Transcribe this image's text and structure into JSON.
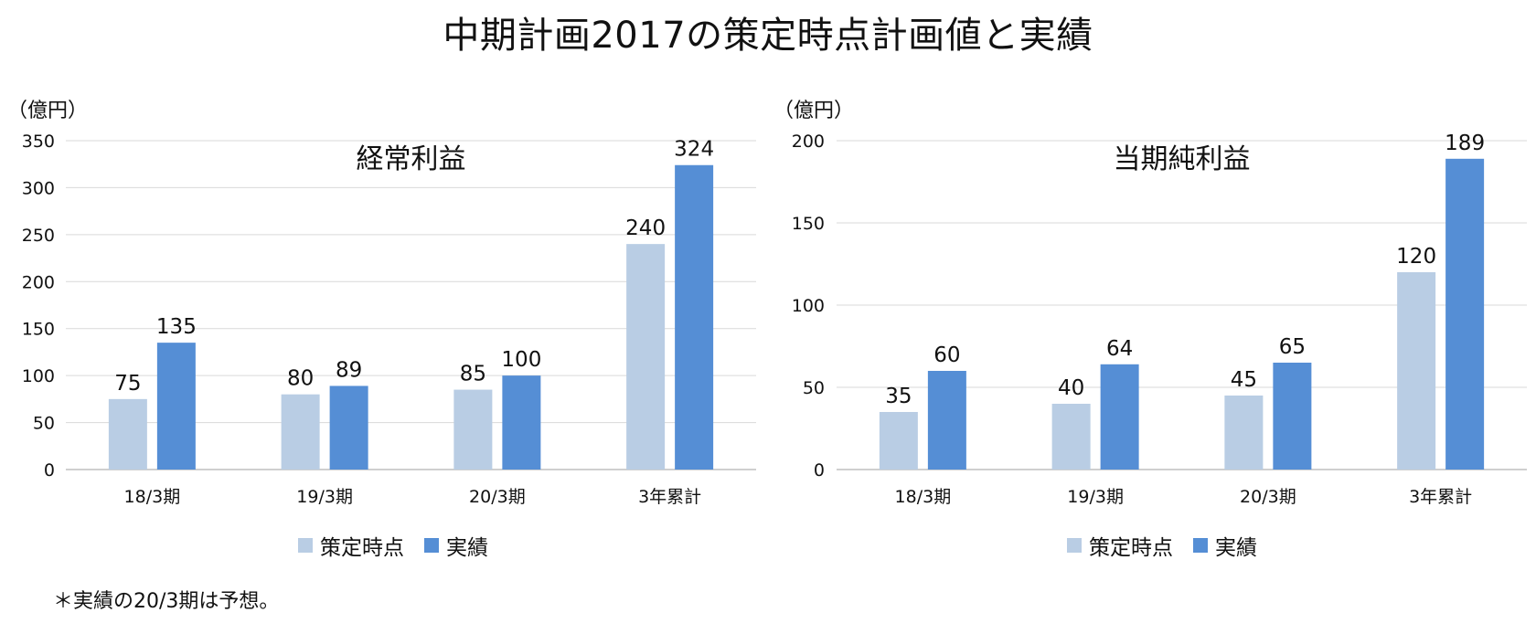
{
  "main_title": "中期計画2017の策定時点計画値と実績",
  "footnote": "＊実績の20/3期は予想。",
  "colors": {
    "plan": "#b9cde4",
    "actual": "#558ed5",
    "grid": "#d9d9d9",
    "axis": "#bfbfbf"
  },
  "chart_data": [
    {
      "type": "bar",
      "title": "経常利益",
      "unit_label": "（億円）",
      "categories": [
        "18/3期",
        "19/3期",
        "20/3期",
        "3年累計"
      ],
      "series": [
        {
          "name": "策定時点",
          "values": [
            75,
            80,
            85,
            240
          ]
        },
        {
          "name": "実績",
          "values": [
            135,
            89,
            100,
            324
          ]
        }
      ],
      "ylim": [
        0,
        350
      ],
      "yticks": [
        0,
        50,
        100,
        150,
        200,
        250,
        300,
        350
      ],
      "grid": true,
      "legend_position": "bottom"
    },
    {
      "type": "bar",
      "title": "当期純利益",
      "unit_label": "（億円）",
      "categories": [
        "18/3期",
        "19/3期",
        "20/3期",
        "3年累計"
      ],
      "series": [
        {
          "name": "策定時点",
          "values": [
            35,
            40,
            45,
            120
          ]
        },
        {
          "name": "実績",
          "values": [
            60,
            64,
            65,
            189
          ]
        }
      ],
      "ylim": [
        0,
        200
      ],
      "yticks": [
        0,
        50,
        100,
        150,
        200
      ],
      "grid": true,
      "legend_position": "bottom"
    }
  ]
}
